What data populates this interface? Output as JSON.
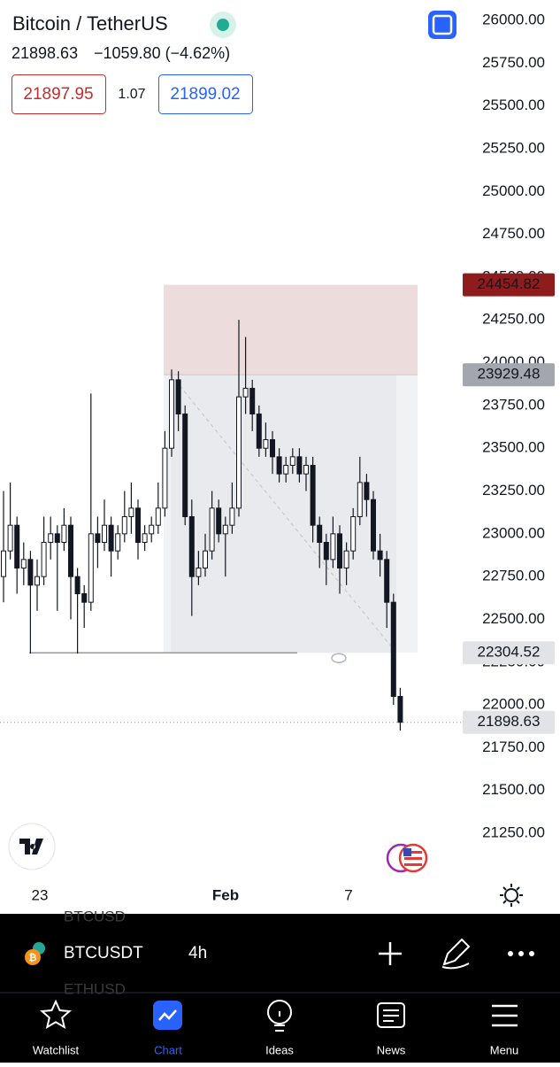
{
  "header": {
    "symbol": "Bitcoin / TetherUS",
    "last": "21898.63",
    "change": "−1059.80 (−4.62%)",
    "bid": "21897.95",
    "spread": "1.07",
    "ask": "21899.02"
  },
  "chart_data": {
    "type": "candlestick",
    "ylim": [
      21000,
      26000
    ],
    "yticks": [
      {
        "value": 26000,
        "label": "26000.00"
      },
      {
        "value": 25750,
        "label": "25750.00"
      },
      {
        "value": 25500,
        "label": "25500.00"
      },
      {
        "value": 25250,
        "label": "25250.00"
      },
      {
        "value": 25000,
        "label": "25000.00"
      },
      {
        "value": 24750,
        "label": "24750.00"
      },
      {
        "value": 24500,
        "label": "24500.00"
      },
      {
        "value": 24250,
        "label": "24250.00"
      },
      {
        "value": 24000,
        "label": "24000.00"
      },
      {
        "value": 23750,
        "label": "23750.00"
      },
      {
        "value": 23500,
        "label": "23500.00"
      },
      {
        "value": 23250,
        "label": "23250.00"
      },
      {
        "value": 23000,
        "label": "23000.00"
      },
      {
        "value": 22750,
        "label": "22750.00"
      },
      {
        "value": 22500,
        "label": "22500.00"
      },
      {
        "value": 22250,
        "label": "22250.00"
      },
      {
        "value": 22000,
        "label": "22000.00"
      },
      {
        "value": 21750,
        "label": "21750.00"
      },
      {
        "value": 21500,
        "label": "21500.00"
      },
      {
        "value": 21250,
        "label": "21250.00"
      }
    ],
    "x_labels": [
      "23",
      "Feb",
      "7"
    ],
    "ohlc": [
      [
        22750,
        23250,
        22600,
        22900
      ],
      [
        22900,
        23300,
        22850,
        23050
      ],
      [
        23050,
        23100,
        22650,
        22800
      ],
      [
        22800,
        22950,
        22700,
        22850
      ],
      [
        22850,
        22900,
        22300,
        22700
      ],
      [
        22700,
        22850,
        22550,
        22750
      ],
      [
        22750,
        23100,
        22700,
        22950
      ],
      [
        22950,
        23100,
        22850,
        23000
      ],
      [
        23000,
        23050,
        22550,
        22950
      ],
      [
        22950,
        23150,
        22900,
        23050
      ],
      [
        23050,
        23100,
        22500,
        22750
      ],
      [
        22750,
        22800,
        22300,
        22650
      ],
      [
        22650,
        22700,
        22450,
        22600
      ],
      [
        22600,
        23820,
        22550,
        23000
      ],
      [
        23000,
        23100,
        22800,
        22950
      ],
      [
        22950,
        23200,
        22900,
        23050
      ],
      [
        23050,
        23100,
        22750,
        22900
      ],
      [
        22900,
        23050,
        22850,
        23000
      ],
      [
        23000,
        23250,
        22950,
        23100
      ],
      [
        23100,
        23300,
        23000,
        23150
      ],
      [
        23150,
        23200,
        22850,
        22950
      ],
      [
        22950,
        23050,
        22900,
        23000
      ],
      [
        23000,
        23100,
        22950,
        23050
      ],
      [
        23050,
        23300,
        23000,
        23150
      ],
      [
        23150,
        23600,
        23100,
        23500
      ],
      [
        23500,
        23960,
        23450,
        23900
      ],
      [
        23900,
        23950,
        23600,
        23700
      ],
      [
        23700,
        23750,
        23050,
        23100
      ],
      [
        23100,
        23200,
        22520,
        22750
      ],
      [
        22750,
        22900,
        22700,
        22800
      ],
      [
        22800,
        23000,
        22750,
        22900
      ],
      [
        22900,
        23250,
        22850,
        23150
      ],
      [
        23150,
        23200,
        22950,
        23000
      ],
      [
        23000,
        23100,
        22750,
        23050
      ],
      [
        23050,
        23300,
        23000,
        23150
      ],
      [
        23150,
        24250,
        23100,
        23800
      ],
      [
        23800,
        24150,
        23700,
        23850
      ],
      [
        23850,
        23900,
        23600,
        23700
      ],
      [
        23700,
        23750,
        23450,
        23500
      ],
      [
        23500,
        23650,
        23450,
        23550
      ],
      [
        23550,
        23600,
        23350,
        23450
      ],
      [
        23450,
        23500,
        23300,
        23350
      ],
      [
        23350,
        23450,
        23300,
        23400
      ],
      [
        23400,
        23500,
        23350,
        23450
      ],
      [
        23450,
        23500,
        23300,
        23350
      ],
      [
        23350,
        23450,
        23250,
        23400
      ],
      [
        23400,
        23450,
        22950,
        23050
      ],
      [
        23050,
        23100,
        22800,
        22950
      ],
      [
        22950,
        23000,
        22700,
        22850
      ],
      [
        22850,
        23100,
        22800,
        23000
      ],
      [
        23000,
        23050,
        22650,
        22800
      ],
      [
        22800,
        22950,
        22700,
        22900
      ],
      [
        22900,
        23150,
        22850,
        23100
      ],
      [
        23100,
        23450,
        23050,
        23300
      ],
      [
        23300,
        23350,
        23100,
        23200
      ],
      [
        23200,
        23250,
        22850,
        22900
      ],
      [
        22900,
        23000,
        22750,
        22850
      ],
      [
        22850,
        22900,
        22450,
        22600
      ],
      [
        22600,
        22650,
        22000,
        22050
      ],
      [
        22050,
        22100,
        21850,
        21898.63
      ]
    ],
    "position": {
      "target": 24454.82,
      "entry": 23929.48,
      "stop": 22304.52
    },
    "last_price": 21898.63
  },
  "toolbar": {
    "list_above": "BTCUSD",
    "symbol": "BTCUSDT",
    "interval": "4h",
    "list_below": "ETHUSD"
  },
  "nav": [
    "Watchlist",
    "Chart",
    "Ideas",
    "News",
    "Menu"
  ]
}
